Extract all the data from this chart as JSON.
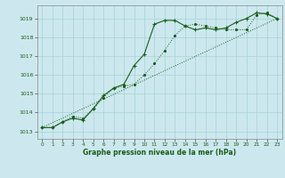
{
  "background_color": "#cce8ee",
  "grid_color": "#aed4db",
  "line_color": "#1a5c1a",
  "xlabel": "Graphe pression niveau de la mer (hPa)",
  "xlim": [
    -0.5,
    23.5
  ],
  "ylim": [
    1012.6,
    1019.7
  ],
  "yticks": [
    1013,
    1014,
    1015,
    1016,
    1017,
    1018,
    1019
  ],
  "xticks": [
    0,
    1,
    2,
    3,
    4,
    5,
    6,
    7,
    8,
    9,
    10,
    11,
    12,
    13,
    14,
    15,
    16,
    17,
    18,
    19,
    20,
    21,
    22,
    23
  ],
  "series1_x": [
    0,
    1,
    2,
    3,
    4,
    5,
    6,
    7,
    8,
    9,
    10,
    11,
    12,
    13,
    14,
    15,
    16,
    17,
    18,
    19,
    20,
    21,
    22,
    23
  ],
  "series1_y": [
    1013.2,
    1013.2,
    1013.5,
    1013.7,
    1013.6,
    1014.2,
    1014.9,
    1015.3,
    1015.5,
    1016.5,
    1017.1,
    1018.7,
    1018.9,
    1018.9,
    1018.6,
    1018.4,
    1018.5,
    1018.4,
    1018.5,
    1018.8,
    1019.0,
    1019.3,
    1019.25,
    1019.0
  ],
  "series2_x": [
    0,
    1,
    2,
    3,
    4,
    5,
    6,
    7,
    8,
    9,
    10,
    11,
    12,
    13,
    14,
    15,
    16,
    17,
    18,
    19,
    20,
    21,
    22,
    23
  ],
  "series2_y": [
    1013.2,
    1013.2,
    1013.5,
    1013.8,
    1013.7,
    1014.2,
    1014.8,
    1015.3,
    1015.4,
    1015.5,
    1016.0,
    1016.6,
    1017.3,
    1018.1,
    1018.6,
    1018.7,
    1018.6,
    1018.5,
    1018.4,
    1018.4,
    1018.4,
    1019.2,
    1019.3,
    1019.0
  ],
  "series3_x": [
    0,
    23
  ],
  "series3_y": [
    1013.2,
    1019.0
  ]
}
